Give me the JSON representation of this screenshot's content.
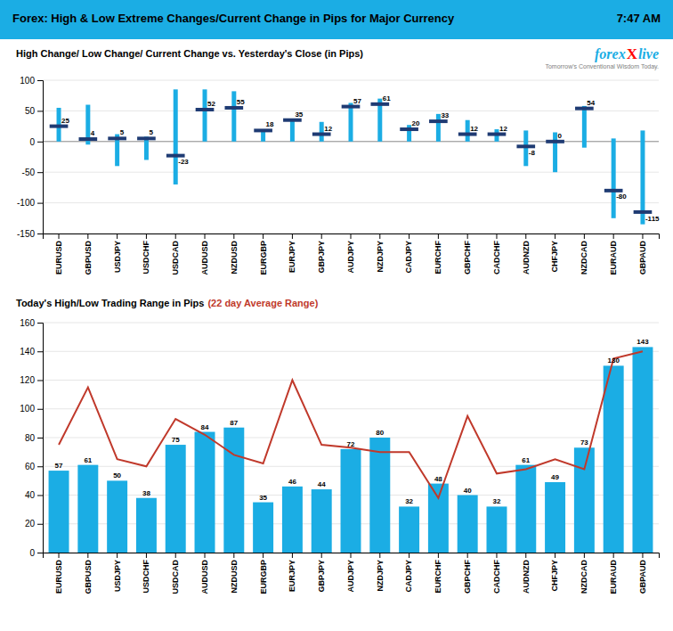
{
  "title": "Forex:  High & Low Extreme Changes/Current Change in Pips for Major Currency",
  "subtitle": "7:47 AM",
  "color": "#1BADE4",
  "chart_data": [
    {
      "type": "range",
      "title": "High Change/ Low Change/ Current Change vs. Yesterday's Close (in Pips)",
      "annotations": [
        {
          "text": "forex",
          "color": "#1BADE4"
        },
        {
          "text": "X",
          "color": "#FF0000"
        },
        {
          "text": "live",
          "color": "#1BADE4"
        },
        {
          "text": "Tomorrow's Conventional Wisdom Today.",
          "color": "#808080"
        }
      ],
      "categories": [
        "EURUSD",
        "GBPUSD",
        "USDJPY",
        "USDCHF",
        "USDCAD",
        "AUDUSD",
        "NZDUSD",
        "EURGBP",
        "EURJPY",
        "GBPJPY",
        "AUDJPY",
        "NZDJPY",
        "CADJPY",
        "EURCHF",
        "GBPCHF",
        "CADCHF",
        "AUDNZD",
        "CHFJPY",
        "NZDCAD",
        "EURAUD",
        "GBPAUD"
      ],
      "series": [
        {
          "type": "range",
          "color": "#1BADE4",
          "high": [
            55,
            60,
            12,
            8,
            85,
            85,
            82,
            20,
            37,
            32,
            63,
            70,
            27,
            45,
            35,
            20,
            18,
            15,
            58,
            5,
            18
          ],
          "low": [
            0,
            -5,
            -40,
            -30,
            -70,
            0,
            0,
            0,
            0,
            0,
            0,
            0,
            0,
            0,
            0,
            0,
            -40,
            -50,
            -10,
            -125,
            -135
          ]
        },
        {
          "type": "tick",
          "color": "#5BB8E8",
          "data_labels": true,
          "values": [
            25,
            4,
            5,
            5,
            -23,
            52,
            55,
            18,
            35,
            12,
            57,
            61,
            20,
            33,
            12,
            12,
            -8,
            0,
            54,
            -80,
            -115
          ]
        }
      ],
      "ylim": [
        -150,
        100
      ],
      "yticks": [
        -150,
        -100,
        -50,
        0,
        50,
        100
      ],
      "grid": true
    },
    {
      "type": "bar",
      "title": "Today's High/Low Trading Range in Pips ",
      "subtitle": "(22 day Average Range)",
      "categories": [
        "EURUSD",
        "GBPUSD",
        "USDJPY",
        "USDCHF",
        "USDCAD",
        "AUDUSD",
        "NZDUSD",
        "EURGBP",
        "EURJPY",
        "GBPJPY",
        "AUDJPY",
        "NZDJPY",
        "CADJPY",
        "EURCHF",
        "GBPCHF",
        "CADCHF",
        "AUDNZD",
        "CHFJPY",
        "NZDCAD",
        "EURAUD",
        "GBPAUD"
      ],
      "series": [
        {
          "type": "bar",
          "color": "#1BADE4",
          "data_labels": true,
          "values": [
            57,
            61,
            50,
            38,
            75,
            84,
            87,
            35,
            46,
            44,
            72,
            80,
            32,
            48,
            40,
            32,
            61,
            49,
            73,
            130,
            143
          ]
        },
        {
          "type": "line",
          "color": "#C0392B",
          "values": [
            75,
            115,
            65,
            60,
            93,
            82,
            68,
            62,
            120,
            75,
            73,
            70,
            70,
            38,
            95,
            55,
            58,
            65,
            58,
            135,
            140
          ]
        }
      ],
      "ylim": [
        0,
        160
      ],
      "yticks": [
        0,
        20,
        40,
        60,
        80,
        100,
        120,
        140,
        160
      ],
      "grid": true
    }
  ]
}
